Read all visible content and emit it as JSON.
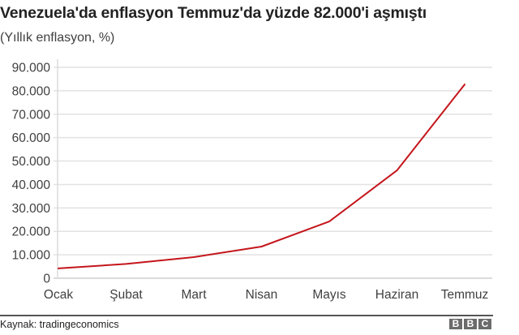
{
  "header": {
    "title": "Venezuela'da enflasyon Temmuz'da yüzde 82.000'i aşmıştı",
    "subtitle": "(Yıllık enflasyon, %)"
  },
  "footer": {
    "source": "Kaynak: tradingeconomics",
    "logo_letters": [
      "B",
      "B",
      "C"
    ]
  },
  "colors": {
    "line": "#c4161c",
    "grid": "#e2e2e2",
    "text": "#404040"
  },
  "chart_data": {
    "type": "line",
    "title": "Venezuela'da enflasyon Temmuz'da yüzde 82.000'i aşmıştı",
    "subtitle": "(Yıllık enflasyon, %)",
    "xlabel": "",
    "ylabel": "",
    "categories": [
      "Ocak",
      "Şubat",
      "Mart",
      "Nisan",
      "Mayıs",
      "Haziran",
      "Temmuz"
    ],
    "series": [
      {
        "name": "Yıllık enflasyon (%)",
        "values": [
          4200,
          6100,
          9000,
          13500,
          24200,
          46000,
          82700
        ]
      }
    ],
    "ylim": [
      0,
      90000
    ],
    "yticks": [
      0,
      10000,
      20000,
      30000,
      40000,
      50000,
      60000,
      70000,
      80000,
      90000
    ],
    "ytick_labels": [
      "0",
      "10.000",
      "20.000",
      "30.000",
      "40.000",
      "50.000",
      "60.000",
      "70.000",
      "80.000",
      "90.000"
    ],
    "grid": true,
    "legend": "none",
    "source": "Kaynak: tradingeconomics"
  }
}
